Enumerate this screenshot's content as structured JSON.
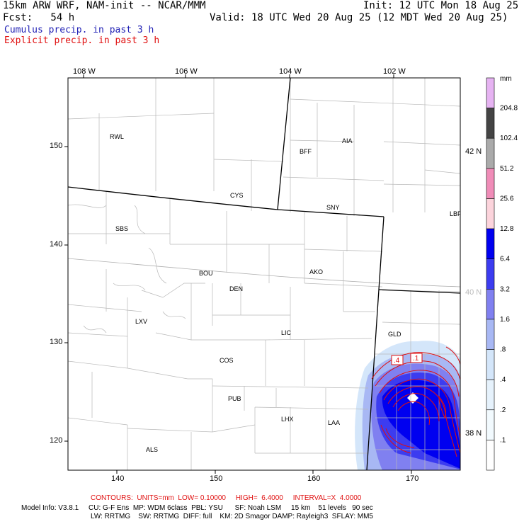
{
  "header": {
    "model": "15km ARW WRF, NAM-init -- NCAR/MMM",
    "init": "Init: 12 UTC Mon 18 Aug 25",
    "fcst": "Fcst:   54 h",
    "valid": "Valid: 18 UTC Wed 20 Aug 25 (12 MDT Wed 20 Aug 25)"
  },
  "legend": {
    "cumulus": "Cumulus precip. in past 3 h",
    "explicit": "Explicit precip. in past 3 h",
    "colors": {
      "cumulus": "#1f1fb4",
      "explicit": "#e01010"
    }
  },
  "axes": {
    "x_top": [
      "108 W",
      "106 W",
      "104 W",
      "102 W"
    ],
    "x_bottom": [
      "140",
      "150",
      "160",
      "170"
    ],
    "y_left": [
      "150",
      "140",
      "130",
      "120"
    ],
    "y_right": [
      "42 N",
      "40 N",
      "38 N"
    ]
  },
  "colorbar": {
    "unit": "mm",
    "labels": [
      "204.8",
      "102.4",
      "51.2",
      "25.6",
      "12.8",
      "6.4",
      "3.2",
      "1.6",
      ".8",
      ".4",
      ".2",
      ".1"
    ],
    "colors": [
      "#e6b3f2",
      "#444444",
      "#aaaaaa",
      "#f08cb8",
      "#fcd4dc",
      "#0000f0",
      "#3c3cf0",
      "#8080f0",
      "#a8b8f4",
      "#d4e6fa",
      "#e6f2fc",
      "#f2fafe",
      "#ffffff"
    ]
  },
  "cities": [
    {
      "name": "RWL"
    },
    {
      "name": "BFF"
    },
    {
      "name": "AIA"
    },
    {
      "name": "CYS"
    },
    {
      "name": "SNY"
    },
    {
      "name": "LBF"
    },
    {
      "name": "SBS"
    },
    {
      "name": "BOU"
    },
    {
      "name": "DEN"
    },
    {
      "name": "AKO"
    },
    {
      "name": "LXV"
    },
    {
      "name": "LIC"
    },
    {
      "name": "GLD"
    },
    {
      "name": "COS"
    },
    {
      "name": "PUB"
    },
    {
      "name": "LHX"
    },
    {
      "name": "LAA"
    },
    {
      "name": "ALS"
    }
  ],
  "contour_labels": [
    ".4",
    ".1"
  ],
  "footer": {
    "contours": "CONTOURS:  UNITS=mm  LOW= 0.10000     HIGH=  6.4000     INTERVAL=X  4.0000",
    "model_line1": "Model Info: V3.8.1     CU: G-F Ens  MP: WDM 6class  PBL: YSU      SF: Noah LSM     15 km    51 levels   90 sec",
    "model_line2": "LW: RRTMG    SW: RRTMG  DIFF: full    KM: 2D Smagor DAMP: Rayleigh3  SFLAY: MM5"
  }
}
